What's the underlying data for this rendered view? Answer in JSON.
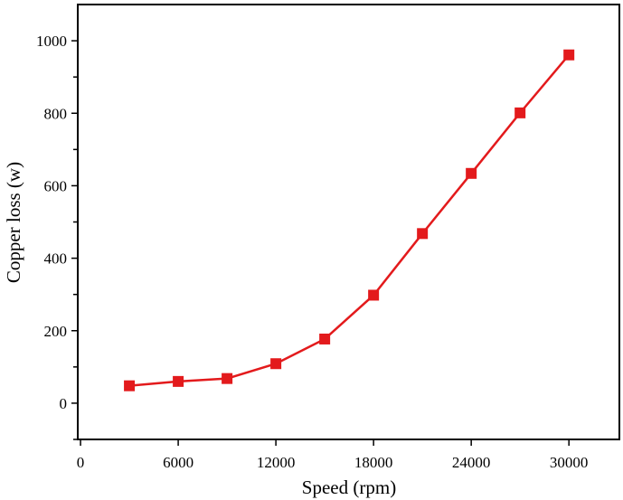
{
  "chart_data": {
    "type": "line",
    "title": "",
    "xlabel": "Speed (rpm)",
    "ylabel": "Copper loss (w)",
    "xlim": [
      -170,
      33100
    ],
    "ylim": [
      -100,
      1100
    ],
    "x_ticks": [
      0,
      6000,
      12000,
      18000,
      24000,
      30000
    ],
    "x_tick_labels": [
      "0",
      "6000",
      "12000",
      "18000",
      "24000",
      "30000"
    ],
    "y_ticks": [
      0,
      200,
      400,
      600,
      800,
      1000
    ],
    "y_tick_labels": [
      "0",
      "200",
      "400",
      "600",
      "800",
      "1000"
    ],
    "y_minor_ticks": [
      -100,
      100,
      300,
      500,
      700,
      900
    ],
    "grid": false,
    "series": [
      {
        "name": "Copper loss",
        "color": "#e31a1c",
        "marker": "square",
        "x": [
          3000,
          6000,
          9000,
          12000,
          15000,
          18000,
          21000,
          24000,
          27000,
          30000
        ],
        "y": [
          48,
          60,
          68,
          109,
          177,
          298,
          468,
          634,
          801,
          961
        ]
      }
    ]
  }
}
